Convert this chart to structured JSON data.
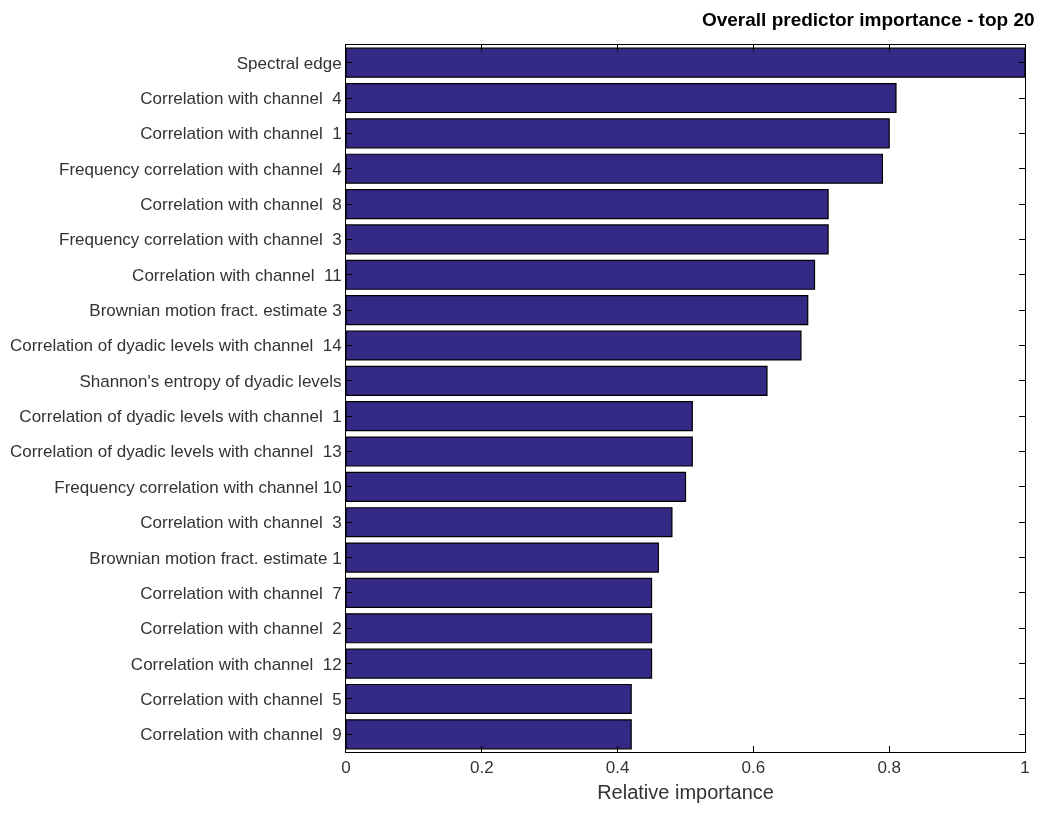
{
  "chart_data": {
    "type": "bar",
    "orientation": "horizontal",
    "title": "Overall predictor importance - top 20",
    "xlabel": "Relative importance",
    "categories": [
      "Spectral edge",
      "Correlation with channel  4",
      "Correlation with channel  1",
      "Frequency correlation with channel  4",
      "Correlation with channel  8",
      "Frequency correlation with channel  3",
      "Correlation with channel  11",
      "Brownian motion fract. estimate 3",
      "Correlation of dyadic levels with channel  14",
      "Shannon's entropy of dyadic levels",
      "Correlation of dyadic levels with channel  1",
      "Correlation of dyadic levels with channel  13",
      "Frequency correlation with channel 10",
      "Correlation with channel  3",
      "Brownian motion fract. estimate 1",
      "Correlation with channel  7",
      "Correlation with channel  2",
      "Correlation with channel  12",
      "Correlation with channel  5",
      "Correlation with channel  9"
    ],
    "values": [
      1.0,
      0.81,
      0.8,
      0.79,
      0.71,
      0.71,
      0.69,
      0.68,
      0.67,
      0.62,
      0.51,
      0.51,
      0.5,
      0.48,
      0.46,
      0.45,
      0.45,
      0.45,
      0.42,
      0.42
    ],
    "color": "#342a85",
    "xlim": [
      0,
      1
    ],
    "xticks": [
      0,
      0.2,
      0.4,
      0.6,
      0.8,
      1
    ]
  }
}
